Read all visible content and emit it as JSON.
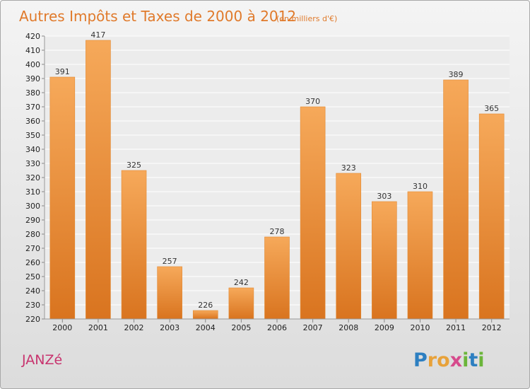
{
  "chart_data": {
    "type": "bar",
    "title": "Autres Impôts et Taxes de 2000 à 2012",
    "subtitle": "(en milliers d'€)",
    "categories": [
      "2000",
      "2001",
      "2002",
      "2003",
      "2004",
      "2005",
      "2006",
      "2007",
      "2008",
      "2009",
      "2010",
      "2011",
      "2012"
    ],
    "values": [
      391,
      417,
      325,
      257,
      226,
      242,
      278,
      370,
      323,
      303,
      310,
      389,
      365
    ],
    "ylim": [
      220,
      420
    ],
    "yticks": [
      220,
      230,
      240,
      250,
      260,
      270,
      280,
      290,
      300,
      310,
      320,
      330,
      340,
      350,
      360,
      370,
      380,
      390,
      400,
      410,
      420
    ],
    "grid": true,
    "bar_color": "#f0983f"
  },
  "commune": "JANZé",
  "logo": {
    "text": "Proxiti",
    "letters": [
      {
        "ch": "P",
        "color": "#2d7fc1"
      },
      {
        "ch": "r",
        "color": "#e8a23a"
      },
      {
        "ch": "o",
        "color": "#e8a23a"
      },
      {
        "ch": "x",
        "color": "#d64a8c"
      },
      {
        "ch": "i",
        "color": "#6bb53a"
      },
      {
        "ch": "t",
        "color": "#2d7fc1"
      },
      {
        "ch": "i",
        "color": "#6bb53a"
      }
    ]
  }
}
